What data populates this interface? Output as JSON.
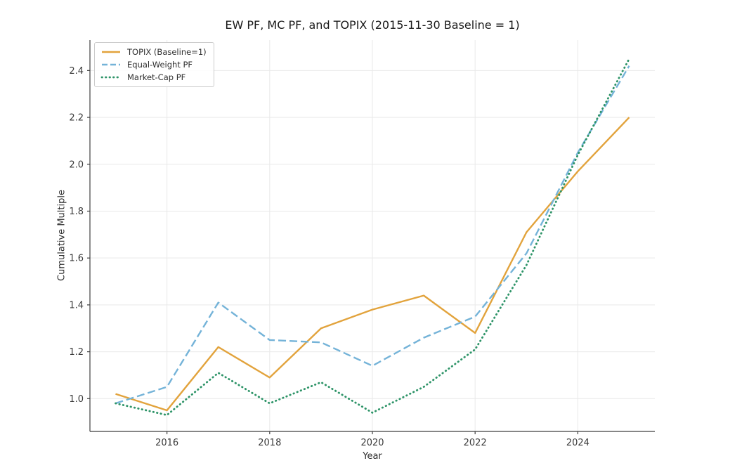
{
  "figure": {
    "background": "#ffffff"
  },
  "chart_data": {
    "type": "line",
    "title": "EW PF, MC PF, and TOPIX (2015-11-30 Baseline = 1)",
    "xlabel": "Year",
    "ylabel": "Cumulative Multiple",
    "x": [
      2015,
      2016,
      2017,
      2018,
      2019,
      2020,
      2021,
      2022,
      2023,
      2024,
      2025
    ],
    "series": [
      {
        "name": "TOPIX (Baseline=1)",
        "style": "solid",
        "color": "#E2A33C",
        "values": [
          1.02,
          0.95,
          1.22,
          1.09,
          1.3,
          1.38,
          1.44,
          1.28,
          1.71,
          1.97,
          2.2
        ]
      },
      {
        "name": "Equal-Weight PF",
        "style": "dashed",
        "color": "#74B3D8",
        "values": [
          0.98,
          1.05,
          1.41,
          1.25,
          1.24,
          1.14,
          1.26,
          1.35,
          1.62,
          2.05,
          2.42
        ]
      },
      {
        "name": "Market-Cap PF",
        "style": "dotted",
        "color": "#2E9468",
        "values": [
          0.98,
          0.93,
          1.11,
          0.98,
          1.07,
          0.94,
          1.05,
          1.21,
          1.57,
          2.04,
          2.45
        ]
      }
    ],
    "xlim": [
      2014.5,
      2025.5
    ],
    "ylim": [
      0.86,
      2.53
    ],
    "xticks": [
      2016,
      2018,
      2020,
      2022,
      2024
    ],
    "yticks": [
      1.0,
      1.2,
      1.4,
      1.6,
      1.8,
      2.0,
      2.2,
      2.4
    ],
    "grid": true,
    "legend_position": "upper-left",
    "colors": {
      "grid": "#e9e9e9",
      "spine": "#3f3f3f",
      "tick_label": "#3a3a3a",
      "title": "#1a1a1a"
    }
  }
}
